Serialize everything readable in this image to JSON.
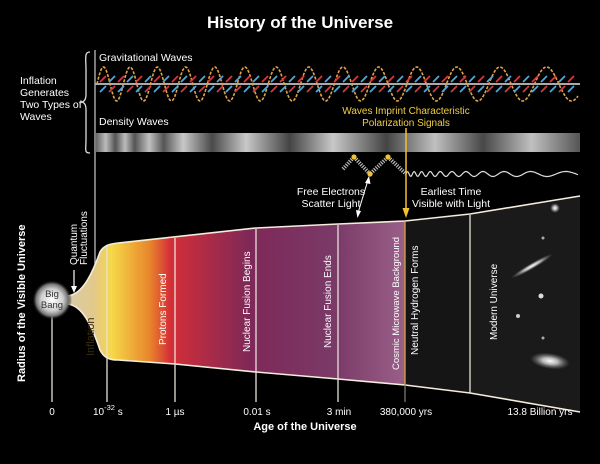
{
  "title": "History of the Universe",
  "inflation_note": {
    "lines": [
      "Inflation",
      "Generates",
      "Two Types of",
      "Waves"
    ]
  },
  "waves": {
    "gravitational_label": "Gravitational Waves",
    "density_label": "Density Waves",
    "imprint_label_line1": "Waves Imprint Characteristic",
    "imprint_label_line2": "Polarization Signals"
  },
  "annotations": {
    "free_electrons_line1": "Free Electrons",
    "free_electrons_line2": "Scatter Light",
    "earliest_time_line1": "Earliest Time",
    "earliest_time_line2": "Visible with Light",
    "quantum_line1": "Quantum",
    "quantum_line2": "Fluctuations",
    "big_bang_line1": "Big",
    "big_bang_line2": "Bang"
  },
  "eras": [
    {
      "label": "Inflation"
    },
    {
      "label": "Protons Formed"
    },
    {
      "label": "Nuclear Fusion Begins"
    },
    {
      "label": "Nuclear Fusion Ends"
    },
    {
      "label": "Cosmic Microwave Background"
    },
    {
      "label": "Neutral Hydrogen Forms"
    },
    {
      "label": "Modern Universe"
    }
  ],
  "axes": {
    "x_label": "Age of the Universe",
    "y_label": "Radius of the Visible Universe",
    "ticks": [
      {
        "label": "0"
      },
      {
        "label": "10",
        "sup": "-32",
        "unit": " s"
      },
      {
        "label": "1 µs"
      },
      {
        "label": "0.01 s"
      },
      {
        "label": "3 min"
      },
      {
        "label": "380,000 yrs"
      },
      {
        "label": "13.8 Billion yrs"
      }
    ]
  },
  "colors": {
    "background": "#000000",
    "accent_yellow": "#f2c230",
    "wave_orange": "#e0a24a",
    "wave_red": "#d9363e",
    "wave_blue": "#4fa8dc"
  }
}
